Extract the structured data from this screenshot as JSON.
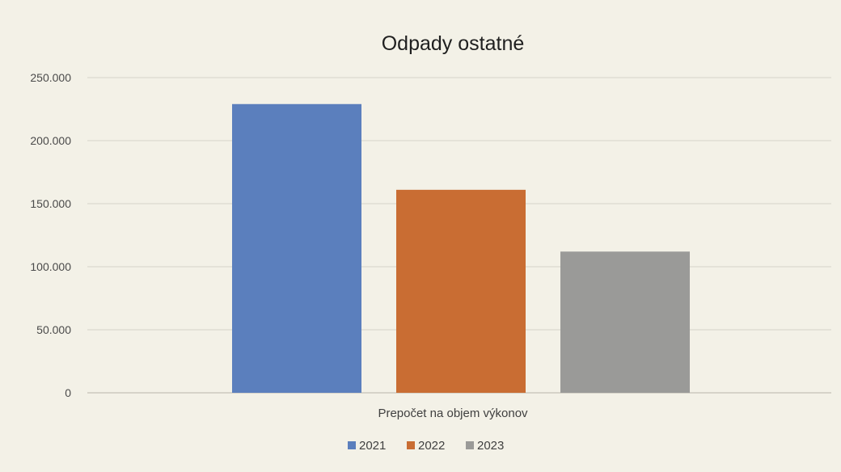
{
  "chart_data": {
    "type": "bar",
    "title": "Odpady ostatné",
    "xlabel": "",
    "ylabel": "",
    "categories": [
      "Prepočet na objem výkonov"
    ],
    "series": [
      {
        "name": "2021",
        "values": [
          229000
        ],
        "color": "#5b7fbd"
      },
      {
        "name": "2022",
        "values": [
          161000
        ],
        "color": "#c96d33"
      },
      {
        "name": "2023",
        "values": [
          112000
        ],
        "color": "#9a9a98"
      }
    ],
    "ylim": [
      0,
      250000
    ],
    "yticks": [
      0,
      50000,
      100000,
      150000,
      200000,
      250000
    ],
    "ytick_labels": [
      "0",
      "50.000",
      "100.000",
      "150.000",
      "200.000",
      "250.000"
    ],
    "grid": true,
    "legend_position": "bottom"
  }
}
